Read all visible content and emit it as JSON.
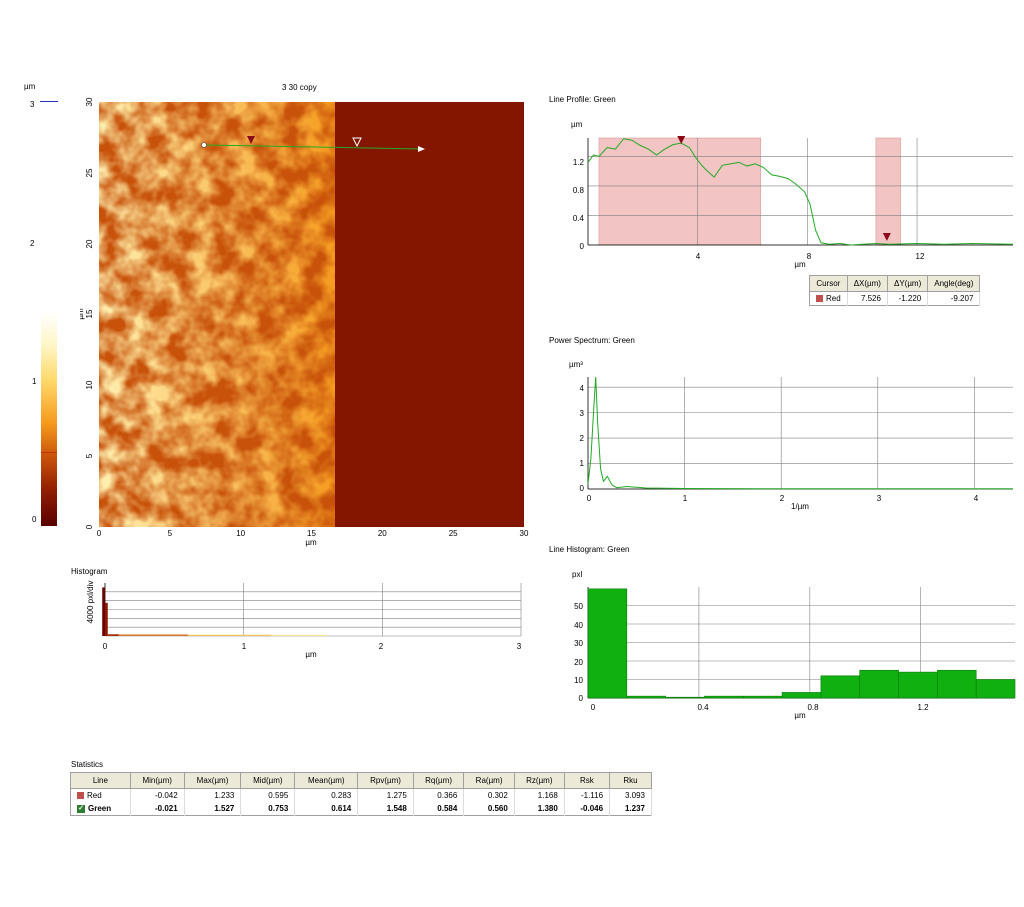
{
  "colors": {
    "afm_dark": "#6b0000",
    "afm_bright": "#fffbe0",
    "profile_line": "#22aa22",
    "cursor_red": "#c0504d",
    "hist_green": "#11b011",
    "grid": "#808080"
  },
  "colorbar": {
    "unit": "µm",
    "ticks": [
      "3",
      "2",
      "1",
      "0"
    ]
  },
  "image": {
    "title": "3 30 copy",
    "x_ticks": [
      "0",
      "5",
      "10",
      "15",
      "20",
      "25",
      "30"
    ],
    "y_ticks": [
      "0",
      "5",
      "10",
      "15",
      "20",
      "25",
      "30"
    ],
    "x_unit": "µm",
    "y_unit": "µm"
  },
  "histogram": {
    "title": "Histogram",
    "y_label": "4000 pxl/div",
    "x_unit": "µm",
    "x_ticks": [
      "0",
      "1",
      "2",
      "3"
    ]
  },
  "line_profile": {
    "title": "Line Profile: Green",
    "y_unit": "µm",
    "x_unit": "µm",
    "y_ticks": [
      "1.2",
      "0.8",
      "0.4",
      "0"
    ],
    "x_ticks": [
      "4",
      "8",
      "12"
    ]
  },
  "cursor_table": {
    "headers": [
      "Cursor",
      "ΔX(µm)",
      "ΔY(µm)",
      "Angle(deg)"
    ],
    "row": {
      "name": "Red",
      "dx": "7.526",
      "dy": "-1.220",
      "angle": "-9.207"
    }
  },
  "power_spectrum": {
    "title": "Power Spectrum: Green",
    "y_unit": "µm³",
    "x_unit": "1/µm",
    "y_ticks": [
      "4",
      "3",
      "2",
      "1",
      "0"
    ],
    "x_ticks": [
      "0",
      "1",
      "2",
      "3",
      "4"
    ]
  },
  "line_histogram": {
    "title": "Line Histogram: Green",
    "y_unit": "pxl",
    "x_unit": "µm",
    "y_ticks": [
      "50",
      "40",
      "30",
      "20",
      "10",
      "0"
    ],
    "x_ticks": [
      "0",
      "0.4",
      "0.8",
      "1.2"
    ]
  },
  "statistics": {
    "title": "Statistics",
    "headers": [
      "Line",
      "Min(µm)",
      "Max(µm)",
      "Mid(µm)",
      "Mean(µm)",
      "Rpv(µm)",
      "Rq(µm)",
      "Ra(µm)",
      "Rz(µm)",
      "Rsk",
      "Rku"
    ],
    "rows": [
      {
        "line": "Red",
        "values": [
          "-0.042",
          "1.233",
          "0.595",
          "0.283",
          "1.275",
          "0.366",
          "0.302",
          "1.168",
          "-1.116",
          "3.093"
        ]
      },
      {
        "line": "Green",
        "values": [
          "-0.021",
          "1.527",
          "0.753",
          "0.614",
          "1.548",
          "0.584",
          "0.560",
          "1.380",
          "-0.046",
          "1.237"
        ]
      }
    ]
  },
  "chart_data": [
    {
      "type": "line",
      "title": "Line Profile: Green",
      "xlabel": "µm",
      "ylabel": "µm",
      "xlim": [
        0,
        15.5
      ],
      "ylim": [
        0,
        1.45
      ],
      "cursor_regions": [
        [
          0.4,
          6.3
        ],
        [
          10.5,
          11.4
        ]
      ],
      "cursor_markers": [
        3.4,
        10.9
      ],
      "series": [
        {
          "x": [
            0,
            0.2,
            0.4,
            0.7,
            1.0,
            1.3,
            1.6,
            1.9,
            2.2,
            2.5,
            2.8,
            3.1,
            3.4,
            3.7,
            3.9,
            4.1,
            4.3,
            4.6,
            4.9,
            5.2,
            5.5,
            5.8,
            6.1,
            6.4,
            6.7,
            7.0,
            7.3,
            7.6,
            7.9,
            8.1,
            8.3,
            8.5,
            8.8,
            9.2,
            9.6,
            10,
            10.5,
            11,
            12,
            13,
            14,
            15.5
          ],
          "y": [
            1.12,
            1.22,
            1.2,
            1.32,
            1.3,
            1.44,
            1.42,
            1.35,
            1.3,
            1.22,
            1.3,
            1.36,
            1.38,
            1.32,
            1.2,
            1.1,
            1.02,
            0.92,
            1.08,
            1.1,
            1.12,
            1.07,
            1.1,
            1.05,
            0.95,
            0.93,
            0.9,
            0.82,
            0.72,
            0.55,
            0.2,
            0.03,
            0.01,
            0.02,
            0.0,
            0.01,
            0.02,
            0.01,
            0.02,
            0.01,
            0.02,
            0.01
          ]
        }
      ]
    },
    {
      "type": "line",
      "title": "Power Spectrum: Green",
      "xlabel": "1/µm",
      "ylabel": "µm³",
      "xlim": [
        0,
        4.4
      ],
      "ylim": [
        0,
        4.4
      ],
      "series": [
        {
          "x": [
            0,
            0.03,
            0.06,
            0.08,
            0.1,
            0.13,
            0.16,
            0.2,
            0.25,
            0.3,
            0.4,
            0.6,
            1.0,
            2.0,
            3.0,
            4.4
          ],
          "y": [
            0.2,
            1.2,
            3.2,
            4.4,
            2.6,
            0.8,
            0.3,
            0.5,
            0.15,
            0.05,
            0.1,
            0.04,
            0.02,
            0.01,
            0.01,
            0.01
          ]
        }
      ]
    },
    {
      "type": "bar",
      "title": "Line Histogram: Green",
      "xlabel": "µm",
      "ylabel": "pxl",
      "xlim": [
        0,
        1.5
      ],
      "ylim": [
        0,
        60
      ],
      "bins": [
        [
          0,
          0.14,
          59
        ],
        [
          0.14,
          0.28,
          1
        ],
        [
          0.28,
          0.42,
          0
        ],
        [
          0.42,
          0.56,
          1
        ],
        [
          0.56,
          0.7,
          1
        ],
        [
          0.7,
          0.84,
          3
        ],
        [
          0.84,
          0.98,
          12
        ],
        [
          0.98,
          1.12,
          15
        ],
        [
          1.12,
          1.26,
          14
        ],
        [
          1.26,
          1.4,
          15
        ],
        [
          1.4,
          1.54,
          10
        ]
      ]
    },
    {
      "type": "bar",
      "title": "Histogram",
      "xlabel": "µm",
      "ylabel": "4000 pxl/div",
      "xlim": [
        0,
        3
      ],
      "bins": [
        [
          -0.02,
          0.0,
          22000
        ],
        [
          0.0,
          0.02,
          15000
        ],
        [
          0.02,
          0.1,
          800
        ],
        [
          0.1,
          0.6,
          700
        ],
        [
          0.6,
          1.2,
          500
        ],
        [
          1.2,
          1.6,
          100
        ]
      ]
    }
  ]
}
